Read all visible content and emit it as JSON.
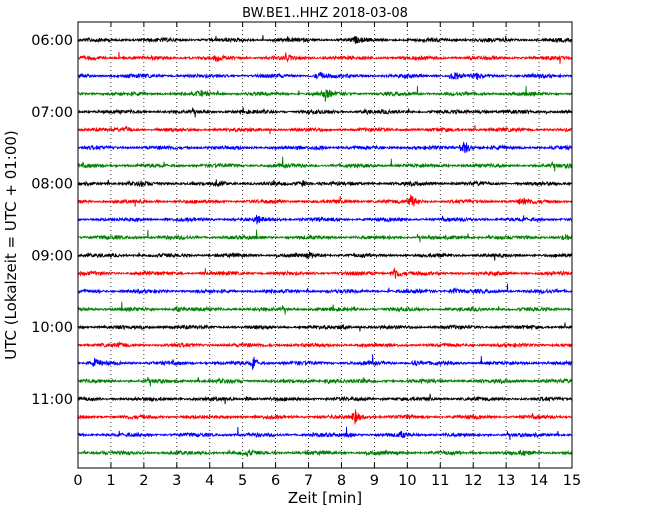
{
  "chart_data": {
    "type": "line",
    "title": "BW.BE1..HHZ 2018-03-08",
    "xlabel": "Zeit  [min]",
    "ylabel": "UTC (Lokalzeit = UTC + 01:00)",
    "xlim": [
      0,
      15
    ],
    "x_ticks": [
      "0",
      "1",
      "2",
      "3",
      "4",
      "5",
      "6",
      "7",
      "8",
      "9",
      "10",
      "11",
      "12",
      "13",
      "14",
      "15"
    ],
    "y_tick_labels": [
      "06:00",
      "07:00",
      "08:00",
      "09:00",
      "10:00",
      "11:00"
    ],
    "grid": "vertical dotted",
    "colors": [
      "#000000",
      "#ff0000",
      "#0000ff",
      "#008000"
    ],
    "series": [
      {
        "start": "06:00",
        "events": [
          {
            "x": 8.4,
            "a": 0.25
          }
        ]
      },
      {
        "start": "06:15",
        "events": [
          {
            "x": 4.2,
            "a": 0.25
          },
          {
            "x": 6.3,
            "a": 0.25
          }
        ]
      },
      {
        "start": "06:30",
        "events": [
          {
            "x": 7.3,
            "a": 0.45
          },
          {
            "x": 11.4,
            "a": 0.5
          },
          {
            "x": 12.1,
            "a": 0.25
          }
        ]
      },
      {
        "start": "06:45",
        "events": [
          {
            "x": 3.7,
            "a": 0.25
          },
          {
            "x": 7.5,
            "a": 0.6
          }
        ]
      },
      {
        "start": "07:00",
        "events": [
          {
            "x": 8.7,
            "a": 0.2
          },
          {
            "x": 12.2,
            "a": 0.2
          }
        ]
      },
      {
        "start": "07:15",
        "events": [
          {
            "x": 1.45,
            "a": 0.3
          }
        ]
      },
      {
        "start": "07:30",
        "events": [
          {
            "x": 11.7,
            "a": 0.9
          },
          {
            "x": 7.3,
            "a": 0.2
          }
        ]
      },
      {
        "start": "07:45",
        "events": [
          {
            "x": 14.9,
            "a": 0.2
          }
        ]
      },
      {
        "start": "08:00",
        "events": [
          {
            "x": 6.8,
            "a": 0.3
          },
          {
            "x": 4.2,
            "a": 0.25
          },
          {
            "x": 1.9,
            "a": 0.2
          }
        ]
      },
      {
        "start": "08:15",
        "events": [
          {
            "x": 10.1,
            "a": 0.7
          },
          {
            "x": 13.5,
            "a": 0.45
          }
        ]
      },
      {
        "start": "08:30",
        "events": [
          {
            "x": 5.4,
            "a": 0.35
          }
        ]
      },
      {
        "start": "08:45",
        "events": [
          {
            "x": 14.8,
            "a": 0.35
          }
        ]
      },
      {
        "start": "09:00",
        "events": [
          {
            "x": 7.0,
            "a": 0.25
          }
        ]
      },
      {
        "start": "09:15",
        "events": [
          {
            "x": 9.6,
            "a": 0.75
          }
        ]
      },
      {
        "start": "09:30",
        "events": [
          {
            "x": 11.4,
            "a": 0.3
          }
        ]
      },
      {
        "start": "09:45",
        "events": [
          {
            "x": 3.0,
            "a": 0.25
          }
        ]
      },
      {
        "start": "10:00",
        "events": [
          {
            "x": 8.0,
            "a": 0.2
          }
        ]
      },
      {
        "start": "10:15",
        "events": [
          {
            "x": 1.3,
            "a": 0.2
          }
        ]
      },
      {
        "start": "10:30",
        "events": [
          {
            "x": 5.3,
            "a": 0.6
          },
          {
            "x": 0.5,
            "a": 0.35
          },
          {
            "x": 10.2,
            "a": 0.3
          }
        ]
      },
      {
        "start": "10:45",
        "events": [
          {
            "x": 7.6,
            "a": 0.3
          }
        ]
      },
      {
        "start": "11:00",
        "events": [
          {
            "x": 5.1,
            "a": 0.2
          }
        ]
      },
      {
        "start": "11:15",
        "events": [
          {
            "x": 8.4,
            "a": 0.7
          }
        ]
      },
      {
        "start": "11:30",
        "events": [
          {
            "x": 9.8,
            "a": 0.25
          },
          {
            "x": 8.2,
            "a": 0.2
          }
        ]
      },
      {
        "start": "11:45",
        "events": [
          {
            "x": 5.1,
            "a": 0.25
          },
          {
            "x": 13.5,
            "a": 0.2
          }
        ]
      }
    ]
  }
}
